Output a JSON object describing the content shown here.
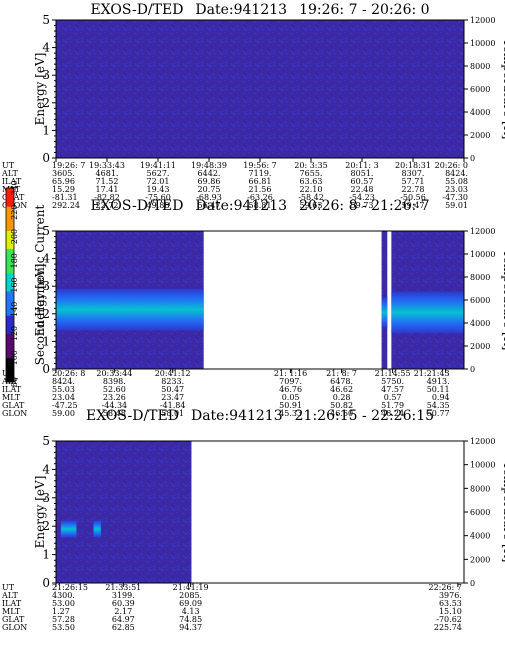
{
  "instrument": "EXOS-D/TED",
  "chart_data": [
    {
      "type": "heatmap",
      "title": "EXOS-D/TED",
      "date_label": "Date:941213",
      "time_range": "19:26: 7 - 20:26: 0",
      "ylabel": "Energy [eV]",
      "y2label": "Temperature [K]",
      "yticks": [
        "0",
        "1",
        "2",
        "3",
        "4",
        "5"
      ],
      "ylim": [
        0,
        5
      ],
      "y2ticks": [
        "0",
        "2000",
        "4000",
        "6000",
        "8000",
        "10000",
        "12000"
      ],
      "y2lim": [
        0,
        12000
      ],
      "data_segments": [
        [
          0,
          1
        ]
      ],
      "bands": [],
      "ephemeris_labels": [
        "UT",
        "ALT",
        "ILAT",
        "MLT",
        "GLAT",
        "GLON"
      ],
      "ephemeris": [
        {
          "UT": "19:26: 7",
          "ALT": "3605.",
          "ILAT": "65.96",
          "MLT": "15.29",
          "GLAT": "-81.31",
          "GLON": "292.24"
        },
        {
          "UT": "19:33:43",
          "ALT": "4681.",
          "ILAT": "71.52",
          "MLT": "17.41",
          "GLAT": "-82.82",
          "GLON": "22.72"
        },
        {
          "UT": "19:41:11",
          "ALT": "5627.",
          "ILAT": "72.01",
          "MLT": "19.43",
          "GLAT": "-75.60",
          "GLON": "49.88"
        },
        {
          "UT": "19:48:39",
          "ALT": "6442.",
          "ILAT": "69.86",
          "MLT": "20.75",
          "GLAT": "-68.93",
          "GLON": "56.47"
        },
        {
          "UT": "19:56: 7",
          "ALT": "7119.",
          "ILAT": "66.81",
          "MLT": "21.56",
          "GLAT": "-63.26",
          "GLON": "58.81"
        },
        {
          "UT": "20: 3:35",
          "ALT": "7655.",
          "ILAT": "63.63",
          "MLT": "22.10",
          "GLAT": "-58.42",
          "GLON": "59.63"
        },
        {
          "UT": "20:11: 3",
          "ALT": "8051.",
          "ILAT": "60.57",
          "MLT": "22.48",
          "GLAT": "-54.23",
          "GLON": "59.73"
        },
        {
          "UT": "20:18:31",
          "ALT": "8307.",
          "ILAT": "57.71",
          "MLT": "22.78",
          "GLAT": "-50.56",
          "GLON": "59.47"
        },
        {
          "UT": "20:26: 0",
          "ALT": "8424.",
          "ILAT": "55.08",
          "MLT": "23.03",
          "GLAT": "-47.30",
          "GLON": "59.01"
        }
      ]
    },
    {
      "type": "heatmap",
      "title": "EXOS-D/TED",
      "date_label": "Date:941213",
      "time_range": "20:26: 8 - 21:26: 7",
      "ylabel": "Energy [eV]",
      "y2label": "Temperature [K]",
      "yticks": [
        "0",
        "1",
        "2",
        "3",
        "4",
        "5"
      ],
      "ylim": [
        0,
        5
      ],
      "y2ticks": [
        "0",
        "2000",
        "4000",
        "6000",
        "8000",
        "10000",
        "12000"
      ],
      "y2lim": [
        0,
        12000
      ],
      "data_segments": [
        [
          0,
          0.362
        ],
        [
          0.798,
          0.812
        ],
        [
          0.822,
          1
        ]
      ],
      "bands": [
        {
          "x0": 0,
          "x1": 0.362,
          "y0": 1.4,
          "y1": 2.9
        },
        {
          "x0": 0.798,
          "x1": 0.812,
          "y0": 1.5,
          "y1": 2.6
        },
        {
          "x0": 0.822,
          "x1": 1,
          "y0": 1.3,
          "y1": 2.8
        }
      ],
      "ephemeris_labels": [
        "UT",
        "ALT",
        "ILAT",
        "MLT",
        "GLAT",
        "GLON"
      ],
      "ephemeris": [
        {
          "UT": "20:26: 8",
          "ALT": "8424.",
          "ILAT": "55.03",
          "MLT": "23.04",
          "GLAT": "-47.25",
          "GLON": "59.00"
        },
        {
          "UT": "20:33:44",
          "ALT": "8398.",
          "ILAT": "52.60",
          "MLT": "23.26",
          "GLAT": "-44.34",
          "GLON": "58.48"
        },
        {
          "UT": "20:41:12",
          "ALT": "8233.",
          "ILAT": "50.47",
          "MLT": "23.47",
          "GLAT": "-41.84",
          "GLON": "58.01"
        },
        {
          "UT": "21: 1:16",
          "ALT": "7097.",
          "ILAT": "46.76",
          "MLT": "0.05",
          "GLAT": "50.91",
          "GLON": "45.33"
        },
        {
          "UT": "21: 8: 7",
          "ALT": "6478.",
          "ILAT": "46.62",
          "MLT": "0.28",
          "GLAT": "50.82",
          "GLON": "46.60"
        },
        {
          "UT": "21:14:55",
          "ALT": "5750.",
          "ILAT": "47.57",
          "MLT": "0.57",
          "GLAT": "51.79",
          "GLON": "48.24"
        },
        {
          "UT": "21:21:43",
          "ALT": "4913.",
          "ILAT": "50.11",
          "MLT": "0.94",
          "GLAT": "54.35",
          "GLON": "50.77"
        }
      ]
    },
    {
      "type": "heatmap",
      "title": "EXOS-D/TED",
      "date_label": "Date:941213",
      "time_range": "21:26:15 - 22:26:15",
      "ylabel": "Energy [eV]",
      "y2label": "Temperature [K]",
      "yticks": [
        "0",
        "1",
        "2",
        "3",
        "4",
        "5"
      ],
      "ylim": [
        0,
        5
      ],
      "y2ticks": [
        "0",
        "2000",
        "4000",
        "6000",
        "8000",
        "10000",
        "12000"
      ],
      "y2lim": [
        0,
        12000
      ],
      "data_segments": [
        [
          0,
          0.332
        ]
      ],
      "bands": [
        {
          "x0": 0.012,
          "x1": 0.05,
          "y0": 1.6,
          "y1": 2.2
        },
        {
          "x0": 0.092,
          "x1": 0.11,
          "y0": 1.6,
          "y1": 2.2
        }
      ],
      "ephemeris_labels": [
        "UT",
        "ALT",
        "ILAT",
        "MLT",
        "GLAT",
        "GLON"
      ],
      "ephemeris": [
        {
          "UT": "21:26:15",
          "ALT": "4300.",
          "ILAT": "53.00",
          "MLT": "1.27",
          "GLAT": "57.28",
          "GLON": "53.50"
        },
        {
          "UT": "21:33:51",
          "ALT": "3199.",
          "ILAT": "60.39",
          "MLT": "2.17",
          "GLAT": "64.97",
          "GLON": "62.85"
        },
        {
          "UT": "21:41:19",
          "ALT": "2085.",
          "ILAT": "69.09",
          "MLT": "4.13",
          "GLAT": "74.85",
          "GLON": "94.37"
        },
        {
          "UT": "22:26: 7",
          "ALT": "3976.",
          "ILAT": "63.53",
          "MLT": "15.10",
          "GLAT": "-70.62",
          "GLON": "225.74"
        }
      ]
    }
  ],
  "colorbar": {
    "label": "Second Harmonic Current",
    "ticks": [
      "80",
      "100",
      "120",
      "140",
      "160",
      "180",
      "200",
      "220",
      "240"
    ],
    "range": [
      80,
      240
    ],
    "colors": [
      "#000000",
      "#5a0a6e",
      "#2a2ac8",
      "#1e78ff",
      "#00d2d2",
      "#3ce650",
      "#dcf000",
      "#ff9600",
      "#ff1e00"
    ]
  }
}
